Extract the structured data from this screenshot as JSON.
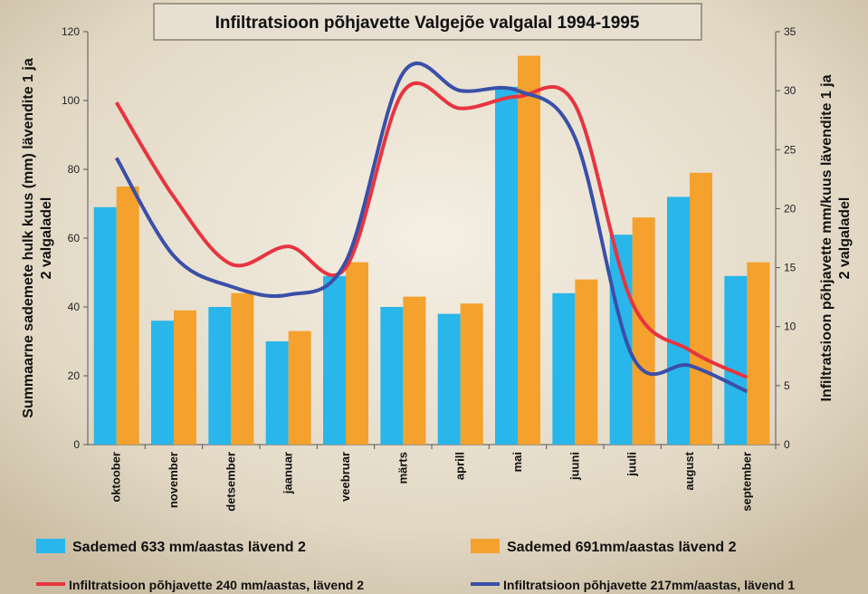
{
  "chart_data": {
    "type": "bar",
    "title": "Infiltratsioon põhjavette Valgejõe valgalal 1994-1995",
    "ylabel": "Summaarne sademete hulk kuus (mm) lävendite 1 ja 2 valgaladel",
    "y2label": "Infiltratsioon põhjavette mm/kuus lävendite 1 ja 2 valgaladel",
    "categories": [
      "oktoober",
      "november",
      "detsember",
      "jaanuar",
      "veebruar",
      "märts",
      "aprill",
      "mai",
      "juuni",
      "juuli",
      "august",
      "september"
    ],
    "ylim": [
      0,
      120
    ],
    "yticks": [
      0,
      20,
      40,
      60,
      80,
      100,
      120
    ],
    "y2lim": [
      0,
      35
    ],
    "y2ticks": [
      0,
      5,
      10,
      15,
      20,
      25,
      30,
      35
    ],
    "series": [
      {
        "name": "Sademed 633 mm/aastas lävend 2",
        "type": "bar",
        "color": "#29b6ea",
        "values": [
          69,
          36,
          40,
          30,
          49,
          40,
          38,
          104,
          44,
          61,
          72,
          49
        ]
      },
      {
        "name": "Sademed 691mm/aastas lävend 2",
        "type": "bar",
        "color": "#f4a12e",
        "values": [
          75,
          39,
          44,
          33,
          53,
          43,
          41,
          113,
          48,
          66,
          79,
          53
        ]
      },
      {
        "name": "Infiltratsioon põhjavette 240 mm/aastas, lävend 2",
        "type": "line",
        "axis": "y2",
        "color": "#e8343f",
        "values": [
          29,
          21,
          15.3,
          16.8,
          15,
          29.9,
          28.5,
          29.5,
          28.8,
          12,
          8,
          5.7
        ]
      },
      {
        "name": "Infiltratsioon põhjavette 217mm/aastas, lävend 1",
        "type": "line",
        "axis": "y2",
        "color": "#3a4fa8",
        "values": [
          24.3,
          16,
          13.4,
          12.7,
          15.5,
          31.5,
          30,
          30,
          26,
          7.5,
          6.7,
          4.5
        ]
      }
    ]
  }
}
